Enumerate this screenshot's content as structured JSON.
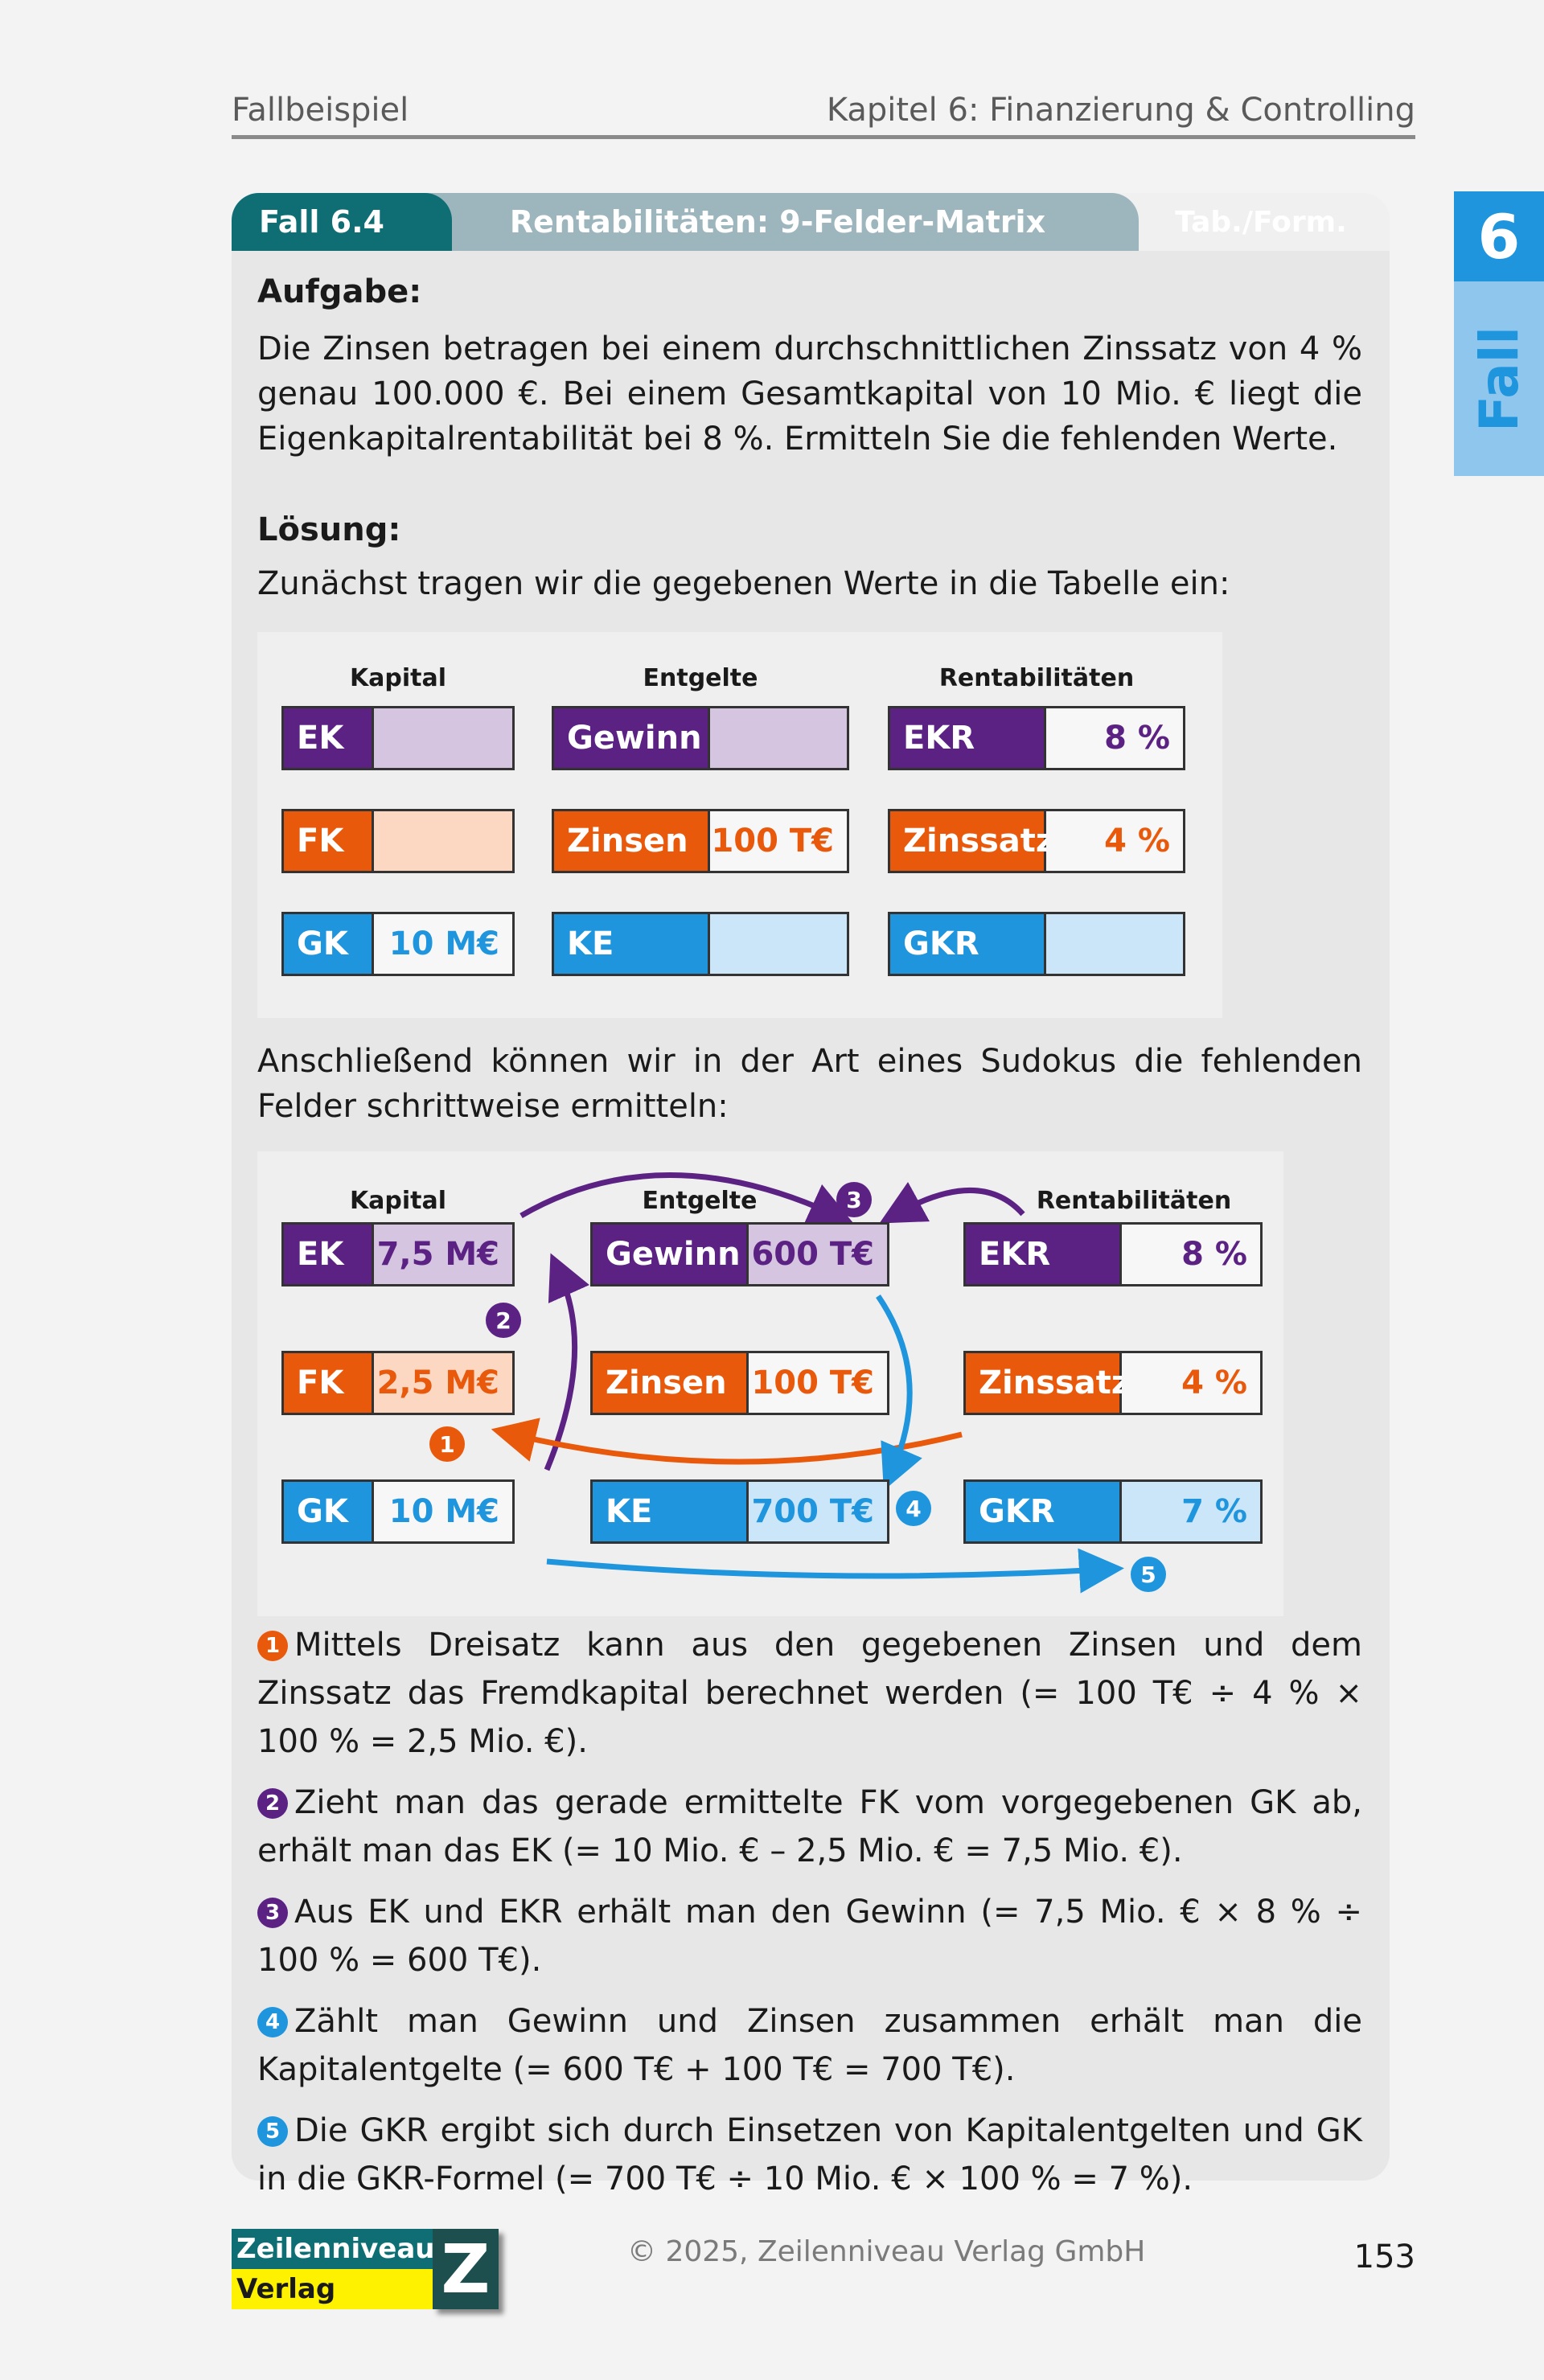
{
  "header": {
    "left": "Fallbeispiel",
    "right": "Kapitel 6: Finanzierung & Controlling"
  },
  "side_tab": {
    "number": "6",
    "word": "Fall"
  },
  "card": {
    "tab_fall": "Fall 6.4",
    "tab_title": "Rentabilitäten: 9-Felder-Matrix",
    "tab_third": "Tab./Form."
  },
  "aufgabe": {
    "heading": "Aufgabe:",
    "text": "Die Zinsen betragen bei einem durchschnittlichen Zinssatz von 4 % genau 100.000 €. Bei einem Gesamtkapital von 10 Mio. € liegt die Eigenkapital­rentabilität bei 8 %. Ermitteln Sie die fehlenden Werte."
  },
  "loesung": {
    "heading": "Lösung:",
    "intro": "Zunächst tragen wir die gegebenen Werte in die Tabelle ein:",
    "between": "Anschließend können wir in der Art eines Sudokus die fehlenden Felder schrittweise ermitteln:"
  },
  "matrix_headers": {
    "kapital": "Kapital",
    "entgelte": "Entgelte",
    "rentabilitaeten": "Rentabilitäten"
  },
  "table1": {
    "ek": {
      "label": "EK",
      "value": ""
    },
    "fk": {
      "label": "FK",
      "value": ""
    },
    "gk": {
      "label": "GK",
      "value": "10 M€"
    },
    "gewinn": {
      "label": "Gewinn",
      "value": ""
    },
    "zinsen": {
      "label": "Zinsen",
      "value": "100 T€"
    },
    "ke": {
      "label": "KE",
      "value": ""
    },
    "ekr": {
      "label": "EKR",
      "value": "8 %"
    },
    "zinssatz": {
      "label": "Zinssatz",
      "value": "4 %"
    },
    "gkr": {
      "label": "GKR",
      "value": ""
    }
  },
  "table2": {
    "ek": {
      "label": "EK",
      "value": "7,5 M€"
    },
    "fk": {
      "label": "FK",
      "value": "2,5 M€"
    },
    "gk": {
      "label": "GK",
      "value": "10 M€"
    },
    "gewinn": {
      "label": "Gewinn",
      "value": "600 T€"
    },
    "zinsen": {
      "label": "Zinsen",
      "value": "100 T€"
    },
    "ke": {
      "label": "KE",
      "value": "700 T€"
    },
    "ekr": {
      "label": "EKR",
      "value": "8 %"
    },
    "zinssatz": {
      "label": "Zinssatz",
      "value": "4 %"
    },
    "gkr": {
      "label": "GKR",
      "value": "7 %"
    }
  },
  "step_markers": [
    "1",
    "2",
    "3",
    "4",
    "5"
  ],
  "steps": [
    "Mittels Dreisatz kann aus den gegebenen Zinsen und dem Zinssatz das Fremdkapital berechnet werden (= 100 T€ ÷ 4 % × 100 % = 2,5 Mio. €).",
    "Zieht man das gerade ermittelte FK vom vorgegebenen GK ab, erhält man das EK (= 10 Mio. € – 2,5 Mio. € = 7,5 Mio. €).",
    "Aus EK und EKR erhält man den Gewinn (= 7,5 Mio. € × 8 % ÷ 100 % = 600 T€).",
    "Zählt man Gewinn und Zinsen zusammen erhält man die Kapitalent­gelte (= 600 T€ + 100 T€ = 700 T€).",
    "Die GKR ergibt sich durch Einsetzen von Kapitalentgelten und GK in die GKR-Formel (= 700 T€ ÷ 10 Mio. € × 100 % = 7 %)."
  ],
  "footer": {
    "logo_top": "Zeilenniveau",
    "logo_bottom": "Verlag",
    "logo_mark": "Z",
    "copyright": "© 2025, Zeilenniveau Verlag GmbH",
    "page_number": "153"
  },
  "colors": {
    "purple": "#5b2283",
    "orange": "#e8590c",
    "blue": "#1e95dd",
    "teal": "#0e6e74"
  }
}
